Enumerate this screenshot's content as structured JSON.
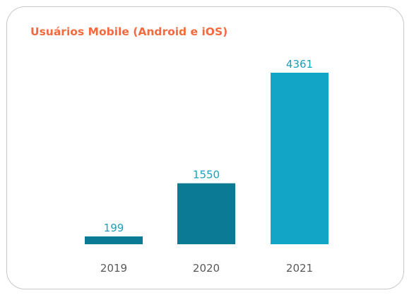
{
  "chart_data": {
    "type": "bar",
    "title": "Usuários Mobile (Android e iOS)",
    "categories": [
      "2019",
      "2020",
      "2021"
    ],
    "values": [
      199,
      1550,
      4361
    ],
    "value_labels": [
      "199",
      "1550",
      "4361"
    ],
    "bar_colors": [
      "#0a7b93",
      "#0a7b93",
      "#12a6c6"
    ],
    "title_color": "#f26a3e",
    "label_color": "#1aa0bd",
    "axis_text_color": "#595959",
    "ylim": [
      0,
      4361
    ],
    "grid": false,
    "legend": "none"
  }
}
